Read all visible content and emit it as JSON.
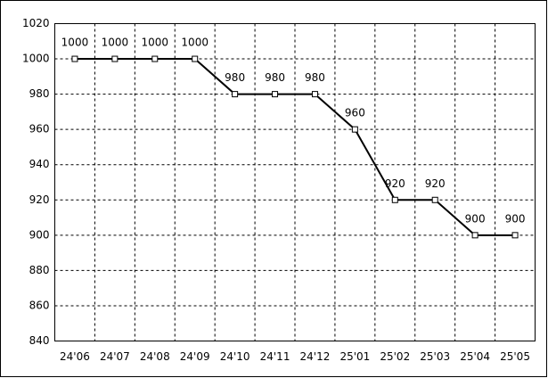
{
  "chart_data": {
    "type": "line",
    "categories": [
      "24'06",
      "24'07",
      "24'08",
      "24'09",
      "24'10",
      "24'11",
      "24'12",
      "25'01",
      "25'02",
      "25'03",
      "25'04",
      "25'05"
    ],
    "values": [
      1000,
      1000,
      1000,
      1000,
      980,
      980,
      980,
      960,
      920,
      920,
      900,
      900
    ],
    "color": "#000000",
    "ylim": [
      840,
      1020
    ],
    "yticks": [
      840,
      860,
      880,
      900,
      920,
      940,
      960,
      980,
      1000,
      1020
    ],
    "grid": true,
    "data_labels": true
  }
}
